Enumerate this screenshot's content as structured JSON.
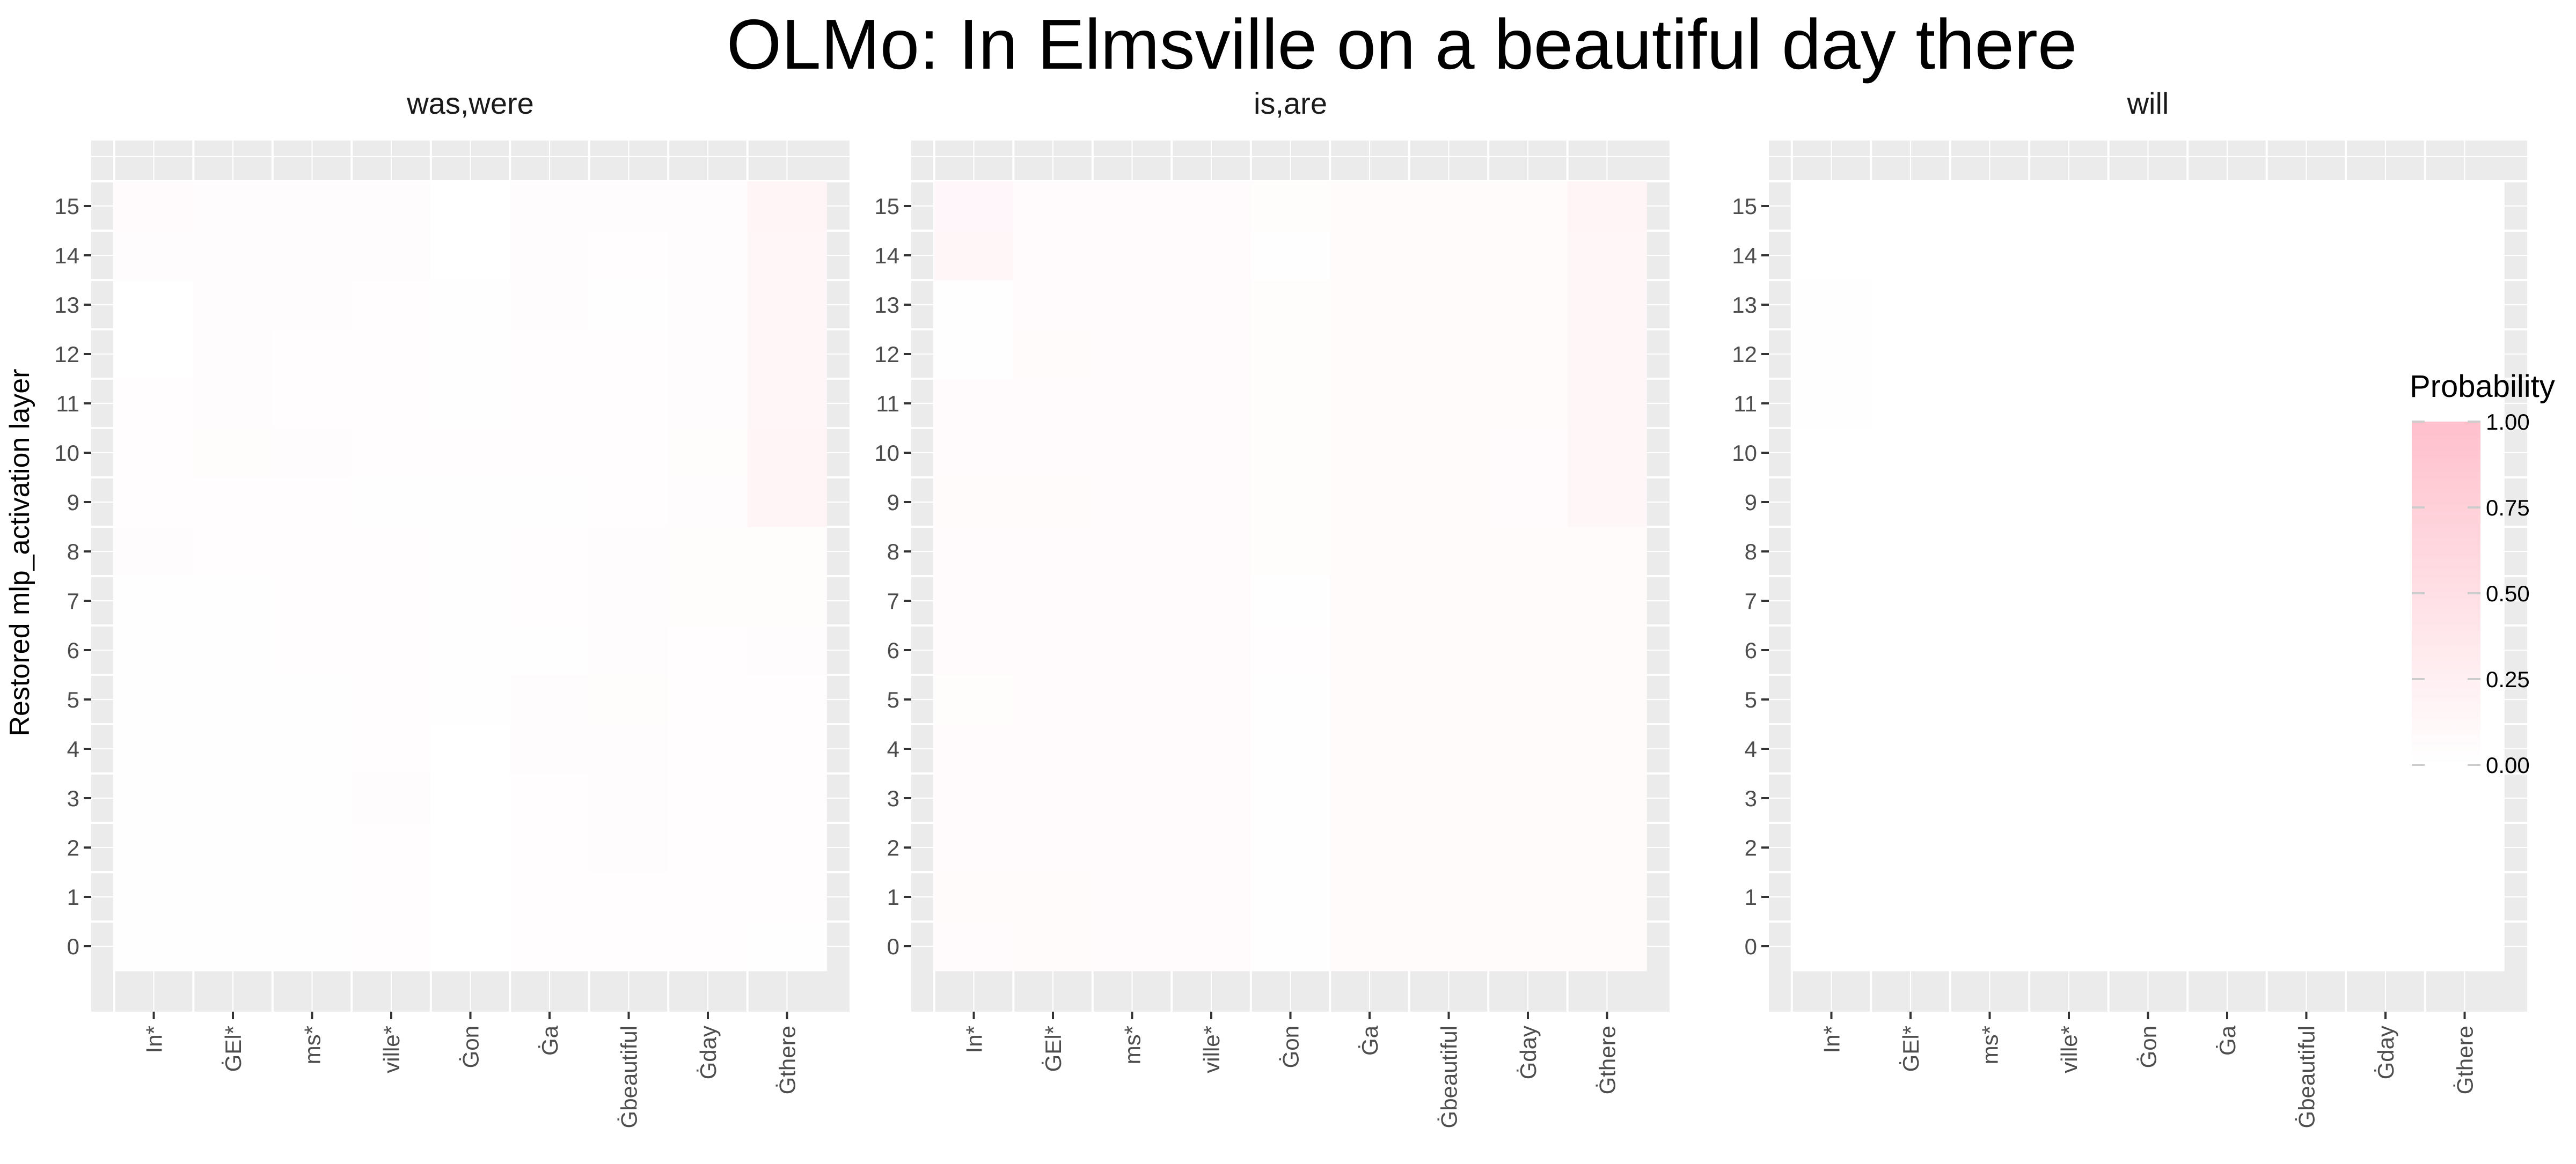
{
  "chart_data": {
    "type": "heatmap",
    "title": "OLMo: In Elmsville on a beautiful day there",
    "ylabel": "Restored mlp_activation layer",
    "x_tokens": [
      "In*",
      "ĠEl*",
      "ms*",
      "ville*",
      "Ġon",
      "Ġa",
      "Ġbeautiful",
      "Ġday",
      "Ġthere"
    ],
    "y_layers": [
      0,
      1,
      2,
      3,
      4,
      5,
      6,
      7,
      8,
      9,
      10,
      11,
      12,
      13,
      14,
      15
    ],
    "grid": true,
    "legend": {
      "title": "Probability",
      "position": "right",
      "breaks": [
        "0.00",
        "0.25",
        "0.50",
        "0.75",
        "1.00"
      ],
      "low_color": "#ffffff",
      "high_color": "#ffc0cb",
      "range": [
        0,
        1
      ]
    },
    "panels": [
      {
        "name": "was,were",
        "values": [
          [
            0.02,
            0.02,
            0.02,
            0.03,
            0.0,
            0.03,
            0.03,
            0.03,
            0.01
          ],
          [
            0.02,
            0.02,
            0.02,
            0.03,
            0.0,
            0.03,
            0.03,
            0.03,
            0.03
          ],
          [
            0.02,
            0.02,
            0.02,
            0.03,
            0.0,
            0.03,
            0.04,
            0.03,
            0.03
          ],
          [
            0.02,
            0.02,
            0.02,
            0.04,
            0.0,
            0.03,
            0.04,
            0.03,
            0.03
          ],
          [
            0.02,
            0.02,
            0.02,
            0.03,
            0.0,
            0.04,
            0.04,
            0.03,
            0.03
          ],
          [
            0.02,
            0.02,
            0.02,
            0.03,
            0.01,
            0.04,
            0.05,
            0.03,
            0.03
          ],
          [
            0.02,
            0.02,
            0.03,
            0.03,
            0.01,
            0.01,
            0.04,
            0.03,
            0.04
          ],
          [
            0.02,
            0.02,
            0.03,
            0.03,
            0.02,
            0.03,
            0.04,
            0.05,
            0.05
          ],
          [
            0.04,
            0.03,
            0.03,
            0.03,
            0.02,
            0.03,
            0.04,
            0.05,
            0.05
          ],
          [
            0.03,
            0.03,
            0.03,
            0.01,
            0.02,
            0.02,
            0.03,
            0.04,
            0.16
          ],
          [
            0.03,
            0.05,
            0.04,
            0.03,
            0.03,
            0.03,
            0.03,
            0.05,
            0.16
          ],
          [
            0.03,
            0.04,
            0.03,
            0.03,
            0.02,
            0.03,
            0.03,
            0.04,
            0.14
          ],
          [
            0.0,
            0.04,
            0.03,
            0.03,
            0.02,
            0.03,
            0.03,
            0.04,
            0.14
          ],
          [
            0.0,
            0.04,
            0.04,
            0.03,
            0.02,
            0.04,
            0.02,
            0.04,
            0.14
          ],
          [
            0.04,
            0.04,
            0.04,
            0.04,
            0.0,
            0.04,
            0.03,
            0.04,
            0.14
          ],
          [
            0.06,
            0.04,
            0.04,
            0.04,
            0.0,
            0.04,
            0.04,
            0.04,
            0.16
          ]
        ]
      },
      {
        "name": "is,are",
        "values": [
          [
            0.06,
            0.07,
            0.06,
            0.06,
            0.02,
            0.07,
            0.07,
            0.07,
            0.07
          ],
          [
            0.07,
            0.07,
            0.06,
            0.06,
            0.02,
            0.07,
            0.07,
            0.07,
            0.07
          ],
          [
            0.06,
            0.08,
            0.06,
            0.06,
            0.02,
            0.07,
            0.07,
            0.07,
            0.07
          ],
          [
            0.06,
            0.08,
            0.06,
            0.06,
            0.02,
            0.07,
            0.07,
            0.07,
            0.07
          ],
          [
            0.06,
            0.08,
            0.06,
            0.06,
            0.02,
            0.07,
            0.07,
            0.07,
            0.07
          ],
          [
            0.05,
            0.08,
            0.06,
            0.06,
            0.02,
            0.07,
            0.07,
            0.07,
            0.07
          ],
          [
            0.06,
            0.08,
            0.06,
            0.06,
            0.03,
            0.07,
            0.07,
            0.07,
            0.07
          ],
          [
            0.06,
            0.08,
            0.06,
            0.06,
            0.02,
            0.07,
            0.07,
            0.07,
            0.07
          ],
          [
            0.06,
            0.06,
            0.06,
            0.06,
            0.05,
            0.07,
            0.07,
            0.07,
            0.07
          ],
          [
            0.07,
            0.07,
            0.06,
            0.06,
            0.05,
            0.07,
            0.07,
            0.06,
            0.14
          ],
          [
            0.08,
            0.06,
            0.06,
            0.06,
            0.05,
            0.07,
            0.07,
            0.06,
            0.15
          ],
          [
            0.06,
            0.06,
            0.06,
            0.06,
            0.05,
            0.07,
            0.07,
            0.07,
            0.14
          ],
          [
            0.01,
            0.07,
            0.06,
            0.06,
            0.05,
            0.07,
            0.07,
            0.07,
            0.14
          ],
          [
            0.02,
            0.06,
            0.06,
            0.06,
            0.05,
            0.07,
            0.07,
            0.07,
            0.14
          ],
          [
            0.14,
            0.06,
            0.06,
            0.06,
            0.02,
            0.07,
            0.07,
            0.07,
            0.15
          ],
          [
            0.12,
            0.06,
            0.06,
            0.06,
            0.05,
            0.07,
            0.07,
            0.07,
            0.17
          ]
        ]
      },
      {
        "name": "will",
        "values": [
          [
            0.0,
            0.0,
            0.0,
            0.0,
            0.0,
            0.0,
            0.0,
            0.0,
            0.0
          ],
          [
            0.0,
            0.0,
            0.0,
            0.0,
            0.0,
            0.0,
            0.0,
            0.0,
            0.0
          ],
          [
            0.0,
            0.0,
            0.0,
            0.0,
            0.0,
            0.0,
            0.0,
            0.0,
            0.0
          ],
          [
            0.0,
            0.0,
            0.0,
            0.0,
            0.0,
            0.0,
            0.0,
            0.0,
            0.0
          ],
          [
            0.0,
            0.0,
            0.0,
            0.0,
            0.0,
            0.0,
            0.0,
            0.0,
            0.0
          ],
          [
            0.0,
            0.0,
            0.0,
            0.0,
            0.0,
            0.0,
            0.0,
            0.0,
            0.0
          ],
          [
            0.0,
            0.0,
            0.0,
            0.0,
            0.0,
            0.0,
            0.0,
            0.0,
            0.0
          ],
          [
            0.0,
            0.0,
            0.0,
            0.0,
            0.0,
            0.0,
            0.0,
            0.0,
            0.0
          ],
          [
            0.0,
            0.0,
            0.0,
            0.0,
            0.0,
            0.0,
            0.0,
            0.0,
            0.0
          ],
          [
            0.0,
            0.0,
            0.0,
            0.0,
            0.0,
            0.0,
            0.0,
            0.0,
            0.0
          ],
          [
            0.0,
            0.0,
            0.0,
            0.0,
            0.0,
            0.0,
            0.0,
            0.0,
            0.0
          ],
          [
            0.01,
            0.0,
            0.0,
            0.0,
            0.0,
            0.0,
            0.0,
            0.0,
            0.0
          ],
          [
            0.01,
            0.0,
            0.0,
            0.0,
            0.0,
            0.0,
            0.0,
            0.0,
            0.0
          ],
          [
            0.01,
            0.0,
            0.0,
            0.0,
            0.0,
            0.0,
            0.0,
            0.0,
            0.0
          ],
          [
            0.0,
            0.0,
            0.0,
            0.0,
            0.0,
            0.0,
            0.0,
            0.0,
            0.0
          ],
          [
            0.0,
            0.0,
            0.0,
            0.0,
            0.0,
            0.0,
            0.0,
            0.0,
            0.0
          ]
        ]
      }
    ]
  }
}
